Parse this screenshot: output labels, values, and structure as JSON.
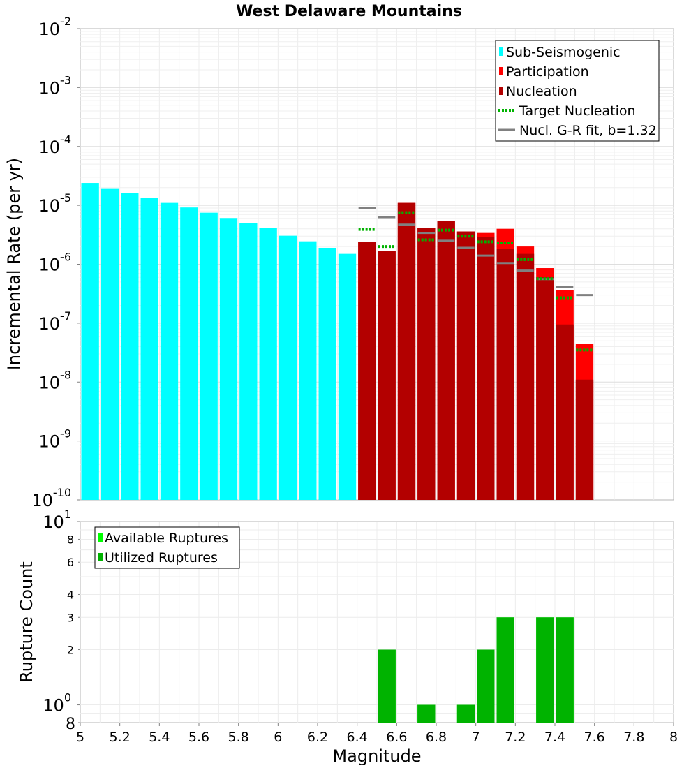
{
  "chart_data": [
    {
      "type": "bar",
      "title": "West Delaware Mountains",
      "xlabel": "",
      "ylabel": "Incremental Rate (per yr)",
      "yscale": "log",
      "xlim": [
        5,
        8
      ],
      "ylim": [
        1e-10,
        0.01
      ],
      "bin_width": 0.1,
      "y_ticks": [
        {
          "base": "10",
          "exp": "-10"
        },
        {
          "base": "10",
          "exp": "-9"
        },
        {
          "base": "10",
          "exp": "-8"
        },
        {
          "base": "10",
          "exp": "-7"
        },
        {
          "base": "10",
          "exp": "-6"
        },
        {
          "base": "10",
          "exp": "-5"
        },
        {
          "base": "10",
          "exp": "-4"
        },
        {
          "base": "10",
          "exp": "-3"
        },
        {
          "base": "10",
          "exp": "-2"
        }
      ],
      "legend_position": "top-right",
      "series": [
        {
          "name": "Sub-Seismogenic",
          "style": "bar",
          "color": "#00ffff",
          "x": [
            5.05,
            5.15,
            5.25,
            5.35,
            5.45,
            5.55,
            5.65,
            5.75,
            5.85,
            5.95,
            6.05,
            6.15,
            6.25,
            6.35
          ],
          "values": [
            2.4e-05,
            1.95e-05,
            1.6e-05,
            1.35e-05,
            1.1e-05,
            9.2e-06,
            7.5e-06,
            6.1e-06,
            5e-06,
            4.1e-06,
            3.05e-06,
            2.45e-06,
            1.9e-06,
            1.5e-06
          ]
        },
        {
          "name": "Participation",
          "style": "bar",
          "color": "#ff0000",
          "x": [
            6.45,
            6.55,
            6.65,
            6.75,
            6.85,
            6.95,
            7.05,
            7.15,
            7.25,
            7.35,
            7.45,
            7.55
          ],
          "values": [
            2.4e-06,
            1.7e-06,
            1.1e-05,
            4.1e-06,
            5.5e-06,
            3.6e-06,
            3.4e-06,
            4e-06,
            2e-06,
            8.6e-07,
            3.6e-07,
            4.4e-08
          ]
        },
        {
          "name": "Nucleation",
          "style": "bar",
          "color": "#b30000",
          "x": [
            6.45,
            6.55,
            6.65,
            6.75,
            6.85,
            6.95,
            7.05,
            7.15,
            7.25,
            7.35,
            7.45,
            7.55
          ],
          "values": [
            2.4e-06,
            1.7e-06,
            1.1e-05,
            4.1e-06,
            5.5e-06,
            3.6e-06,
            2.9e-06,
            1.8e-06,
            1.5e-06,
            6e-07,
            9.5e-08,
            1.1e-08
          ]
        },
        {
          "name": "Target Nucleation",
          "style": "dotted-step",
          "color": "#00b300",
          "x": [
            6.45,
            6.55,
            6.65,
            6.75,
            6.85,
            6.95,
            7.05,
            7.15,
            7.25,
            7.35,
            7.45,
            7.55
          ],
          "values": [
            3.9e-06,
            2e-06,
            7.5e-06,
            2.6e-06,
            3.8e-06,
            3e-06,
            2.4e-06,
            2.3e-06,
            1.2e-06,
            5.7e-07,
            2.7e-07,
            3.5e-08
          ]
        },
        {
          "name": "Nucl. G-R fit, b=1.32",
          "style": "step",
          "color": "#808080",
          "x": [
            6.45,
            6.55,
            6.65,
            6.75,
            6.85,
            6.95,
            7.05,
            7.15,
            7.25,
            7.35,
            7.45,
            7.55
          ],
          "values": [
            8.9e-06,
            6.3e-06,
            4.7e-06,
            3.4e-06,
            2.5e-06,
            1.9e-06,
            1.4e-06,
            1.05e-06,
            7.8e-07,
            5.6e-07,
            4.1e-07,
            3e-07
          ]
        }
      ]
    },
    {
      "type": "bar",
      "title": "",
      "xlabel": "Magnitude",
      "ylabel": "Rupture Count",
      "yscale": "log",
      "xlim": [
        5,
        8
      ],
      "ylim": [
        0.8,
        10
      ],
      "bin_width": 0.1,
      "x_ticks": [
        "5",
        "5.2",
        "5.4",
        "5.6",
        "5.8",
        "6",
        "6.2",
        "6.4",
        "6.6",
        "6.8",
        "7",
        "7.2",
        "7.4",
        "7.6",
        "7.8",
        "8"
      ],
      "y_major_ticks": [
        {
          "value": 1,
          "base": "10",
          "exp": "0"
        },
        {
          "value": 10,
          "base": "10",
          "exp": "1"
        }
      ],
      "y_minor_ticks": [
        {
          "value": 0.8,
          "label": "8"
        },
        {
          "value": 2,
          "label": "2"
        },
        {
          "value": 3,
          "label": "3"
        },
        {
          "value": 4,
          "label": "4"
        },
        {
          "value": 6,
          "label": "6"
        },
        {
          "value": 8,
          "label": "8"
        }
      ],
      "legend_position": "top-left",
      "series": [
        {
          "name": "Available Ruptures",
          "style": "bar",
          "color": "#00ff00",
          "x": [
            6.55,
            6.75,
            6.95,
            7.05,
            7.15,
            7.35,
            7.45
          ],
          "values": [
            2,
            1,
            1,
            2,
            3,
            3,
            3
          ]
        },
        {
          "name": "Utilized Ruptures",
          "style": "bar",
          "color": "#00b300",
          "x": [
            6.55,
            6.75,
            6.95,
            7.05,
            7.15,
            7.35,
            7.45
          ],
          "values": [
            2,
            1,
            1,
            2,
            3,
            3,
            3
          ]
        }
      ]
    }
  ]
}
